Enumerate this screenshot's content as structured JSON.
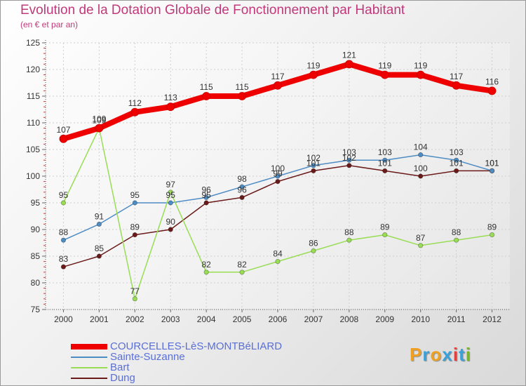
{
  "title": "Evolution de la Dotation Globale de Fonctionnement par Habitant",
  "subtitle": "(en € et par an)",
  "logo": {
    "text": "Proxiti",
    "letters": [
      "P",
      "r",
      "o",
      "x",
      "i",
      "t",
      "i"
    ],
    "colors": [
      "#f0a020",
      "#39a0d8",
      "#f0a020",
      "#39a0d8",
      "#e04040",
      "#39a0d8",
      "#7ab32f"
    ]
  },
  "chart_data": {
    "type": "line",
    "title": "Evolution de la Dotation Globale de Fonctionnement par Habitant",
    "subtitle": "(en € et par an)",
    "xlabel": "",
    "ylabel": "",
    "categories": [
      "2000",
      "2001",
      "2002",
      "2003",
      "2004",
      "2005",
      "2006",
      "2007",
      "2008",
      "2009",
      "2010",
      "2011",
      "2012"
    ],
    "ylim": [
      75,
      125
    ],
    "yticks": [
      75,
      80,
      85,
      90,
      95,
      100,
      105,
      110,
      115,
      120,
      125
    ],
    "grid": true,
    "legend_position": "bottom-left",
    "series": [
      {
        "name": "COURCELLES-LèS-MONTBéLIARD",
        "color": "#ee0000",
        "values": [
          107,
          109,
          112,
          113,
          115,
          115,
          117,
          119,
          121,
          119,
          119,
          117,
          116
        ]
      },
      {
        "name": "Sainte-Suzanne",
        "color": "#4e8cc4",
        "values": [
          88,
          91,
          95,
          95,
          96,
          98,
          100,
          102,
          103,
          103,
          104,
          103,
          101
        ]
      },
      {
        "name": "Bart",
        "color": "#99dd55",
        "values": [
          95,
          109,
          77,
          97,
          82,
          82,
          84,
          86,
          88,
          89,
          87,
          88,
          89
        ]
      },
      {
        "name": "Dung",
        "color": "#6b1a1a",
        "values": [
          83,
          85,
          89,
          90,
          95,
          96,
          99,
          101,
          102,
          101,
          100,
          101,
          101
        ]
      }
    ]
  }
}
